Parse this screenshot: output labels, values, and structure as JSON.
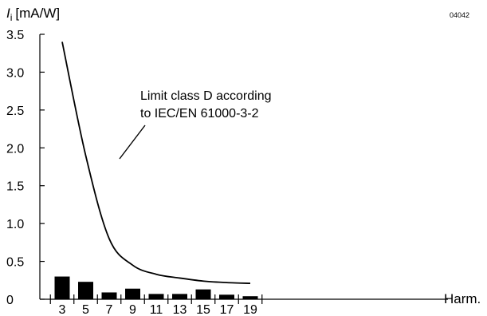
{
  "figure_code": "04042",
  "chart_data": {
    "type": "bar",
    "title": "",
    "ylabel_symbol": "I",
    "ylabel_subscript": "i",
    "ylabel_unit": "[mA/W]",
    "xlabel": "Harm.",
    "ylim": [
      0,
      3.5
    ],
    "yticks": [
      "0",
      "0.5",
      "1.0",
      "1.5",
      "2.0",
      "2.5",
      "3.0",
      "3.5"
    ],
    "categories": [
      "3",
      "5",
      "7",
      "9",
      "11",
      "13",
      "15",
      "17",
      "19"
    ],
    "values": [
      0.3,
      0.23,
      0.09,
      0.14,
      0.07,
      0.07,
      0.13,
      0.06,
      0.04
    ],
    "bar_color": "#000000",
    "limit_curve": {
      "label_line1": "Limit class D according",
      "label_line2": "to IEC/EN 61000-3-2",
      "x": [
        3,
        5,
        7,
        9,
        11,
        13,
        15,
        17,
        19
      ],
      "y": [
        3.4,
        1.9,
        0.8,
        0.45,
        0.33,
        0.28,
        0.24,
        0.22,
        0.21
      ]
    }
  }
}
